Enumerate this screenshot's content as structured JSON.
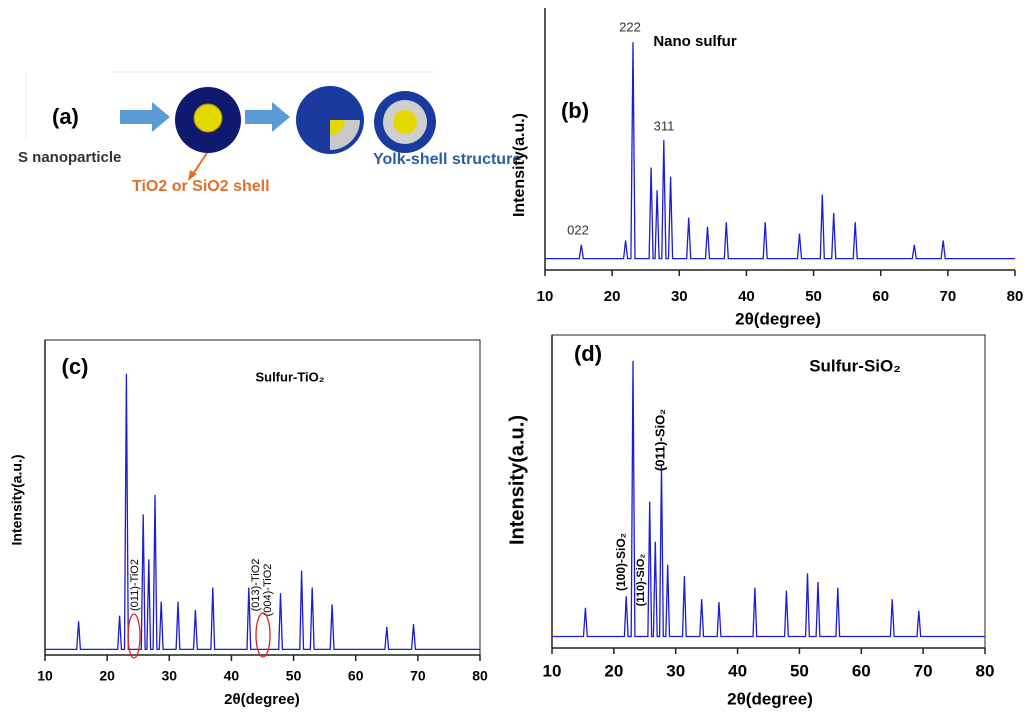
{
  "diagram": {
    "label": "(a)",
    "core": "S nanoparticle",
    "shell": "TiO2 or SiO2 shell",
    "result": "Yolk-shell structure"
  },
  "chart_data": [
    {
      "type": "line",
      "panel_label": "(b)",
      "title": "Nano sulfur",
      "xlabel": "2θ(degree)",
      "ylabel": "Intensity(a.u.)",
      "annotations": [
        "222",
        "311",
        "022"
      ],
      "xlim": [
        10,
        80
      ],
      "xticks": [
        10,
        20,
        30,
        40,
        50,
        60,
        70,
        80
      ],
      "ylim": [
        0,
        115
      ],
      "series": [
        {
          "name": null,
          "color": "#1c1cd0",
          "x": [
            10,
            15.1,
            15.4,
            15.7,
            21.7,
            22,
            22.3,
            22.8,
            23.1,
            23.4,
            25.5,
            25.8,
            26.1,
            26.4,
            26.7,
            27,
            27.4,
            27.7,
            28,
            28.4,
            28.7,
            29,
            31.1,
            31.4,
            31.7,
            33.9,
            34.2,
            34.5,
            36.7,
            37,
            37.3,
            42.5,
            42.8,
            43.1,
            47.6,
            47.9,
            48.2,
            51,
            51.3,
            51.6,
            52.7,
            53,
            53.3,
            55.9,
            56.2,
            56.5,
            64.7,
            65,
            65.3,
            69,
            69.3,
            69.6,
            80
          ],
          "values": [
            5,
            5,
            11,
            5,
            5,
            13,
            5,
            5,
            100,
            5,
            5,
            45,
            5,
            5,
            35,
            5,
            5,
            57,
            5,
            5,
            41,
            5,
            5,
            23,
            5,
            5,
            19,
            5,
            5,
            21,
            5,
            5,
            21,
            5,
            5,
            16,
            5,
            5,
            33,
            5,
            5,
            25,
            5,
            5,
            21,
            5,
            5,
            11,
            5,
            5,
            13,
            5,
            5
          ]
        }
      ]
    },
    {
      "type": "line",
      "panel_label": "(c)",
      "title": "Sulfur-TiO₂",
      "xlabel": "2θ(degree)",
      "ylabel": "Intensity(a.u.)",
      "annotations": [
        "(011)-TiO2",
        "(013)-TiO2",
        "(004)-TiO2"
      ],
      "xlim": [
        10,
        80
      ],
      "xticks": [
        10,
        20,
        30,
        40,
        50,
        60,
        70,
        80
      ],
      "ylim": [
        0,
        112
      ],
      "series": [
        {
          "name": null,
          "color": "#1c1cd0",
          "x": [
            10,
            15.1,
            15.4,
            15.7,
            21.7,
            22,
            22.3,
            22.8,
            23.1,
            23.4,
            25.5,
            25.8,
            26.1,
            26.4,
            26.7,
            27,
            27.4,
            27.7,
            28,
            28.4,
            28.7,
            29,
            31.1,
            31.4,
            31.7,
            33.9,
            34.2,
            34.5,
            36.7,
            37,
            37.3,
            42.5,
            42.8,
            43.1,
            47.6,
            47.9,
            48.2,
            51,
            51.3,
            51.6,
            52.7,
            53,
            53.3,
            55.9,
            56.2,
            56.5,
            64.7,
            65,
            65.3,
            69,
            69.3,
            69.6,
            80
          ],
          "values": [
            2,
            2,
            12,
            2,
            2,
            14,
            2,
            2,
            100,
            2,
            2,
            50,
            2,
            2,
            34,
            2,
            2,
            57,
            2,
            2,
            19,
            2,
            2,
            19,
            2,
            2,
            16,
            2,
            2,
            24,
            2,
            2,
            24,
            2,
            2,
            22,
            2,
            2,
            30,
            2,
            2,
            24,
            2,
            2,
            18,
            2,
            2,
            10,
            2,
            2,
            11,
            2,
            2
          ]
        }
      ]
    },
    {
      "type": "line",
      "panel_label": "(d)",
      "title": "Sulfur-SiO₂",
      "xlabel": "2θ(degree)",
      "ylabel": "Intensity(a.u.)",
      "annotations": [
        "(100)-SiO₂",
        "(110)-SiO₂",
        "(011)-SiO₂"
      ],
      "xlim": [
        10,
        80
      ],
      "xticks": [
        10,
        20,
        30,
        40,
        50,
        60,
        70,
        80
      ],
      "ylim": [
        0,
        109
      ],
      "series": [
        {
          "name": null,
          "color": "#1c1cd0",
          "x": [
            10,
            15.1,
            15.4,
            15.7,
            21.7,
            22,
            22.3,
            22.8,
            23.1,
            23.4,
            25.5,
            25.8,
            26.1,
            26.4,
            26.7,
            27,
            27.4,
            27.7,
            28,
            28.4,
            28.7,
            29,
            31.1,
            31.4,
            31.7,
            33.9,
            34.2,
            34.5,
            36.7,
            37,
            37.3,
            42.5,
            42.8,
            43.1,
            47.6,
            47.9,
            48.2,
            51,
            51.3,
            51.6,
            52.7,
            53,
            53.3,
            55.9,
            56.2,
            56.5,
            64.7,
            65,
            65.3,
            69,
            69.3,
            69.6,
            80
          ],
          "values": [
            4,
            4,
            14,
            4,
            4,
            18,
            4,
            4,
            100,
            4,
            4,
            51,
            4,
            4,
            37,
            4,
            4,
            64,
            4,
            4,
            29,
            4,
            4,
            25,
            4,
            4,
            17,
            4,
            4,
            16,
            4,
            4,
            21,
            4,
            4,
            20,
            4,
            4,
            26,
            4,
            4,
            23,
            4,
            4,
            21,
            4,
            4,
            17,
            4,
            4,
            13,
            4,
            4
          ]
        }
      ]
    }
  ]
}
